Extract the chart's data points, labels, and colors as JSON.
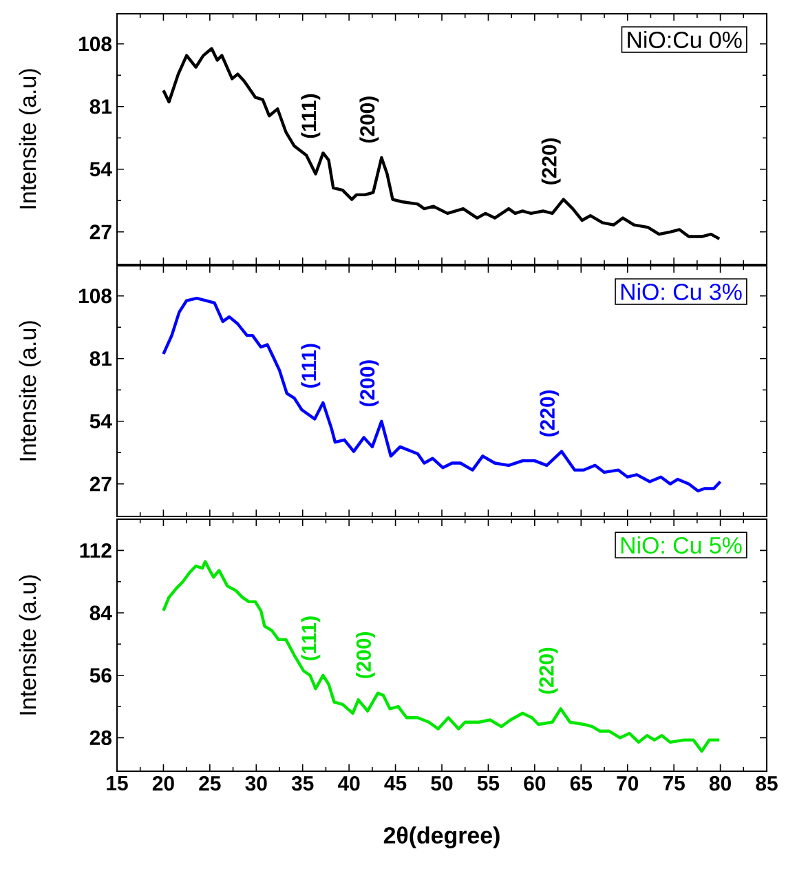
{
  "chart_data": [
    {
      "type": "line",
      "ylabel": "Intensite (a.u)",
      "xlim": [
        15,
        85
      ],
      "xticks": [
        15,
        20,
        25,
        30,
        35,
        40,
        45,
        50,
        55,
        60,
        65,
        70,
        75,
        80,
        85
      ],
      "ylim": [
        13,
        121
      ],
      "yticks": [
        27,
        54,
        81,
        108
      ],
      "tick_labels": "y",
      "legend": "top right",
      "marker": "none",
      "series": [
        {
          "name": "NiO:Cu 0%",
          "color": "#000000",
          "x": [
            20,
            20.6,
            21.6,
            22.5,
            23.5,
            24.3,
            25.2,
            25.8,
            26.3,
            27.4,
            28.0,
            28.7,
            29.9,
            30.7,
            31.4,
            32.3,
            33.2,
            34.1,
            35.4,
            36.4,
            37.2,
            37.8,
            38.3,
            39.3,
            40.3,
            40.8,
            41.7,
            42.6,
            43.5,
            44.1,
            44.7,
            45.7,
            47.4,
            48.1,
            49.1,
            50.6,
            52.3,
            53.8,
            54.7,
            55.7,
            57.2,
            57.9,
            58.7,
            59.6,
            60.9,
            61.9,
            63.1,
            64.1,
            65.1,
            66.0,
            67.3,
            68.5,
            69.5,
            70.7,
            72.2,
            73.4,
            74.6,
            75.6,
            76.6,
            78.0,
            79.0,
            79.9
          ],
          "values": [
            88,
            83,
            95,
            103,
            98,
            103,
            106,
            101,
            103,
            93,
            95,
            92,
            85,
            84,
            77,
            80,
            70,
            64,
            60,
            52,
            61,
            58,
            46,
            45,
            41,
            43,
            43,
            44,
            59,
            52,
            41,
            40,
            39,
            37,
            38,
            35,
            37,
            33,
            35,
            33,
            37,
            35,
            36,
            35,
            36,
            35,
            41,
            37,
            32,
            34,
            31,
            30,
            33,
            30,
            29,
            26,
            27,
            28,
            25,
            25,
            26,
            24
          ]
        }
      ],
      "annotations": [
        {
          "text": "(111)",
          "x": 37.2,
          "y": 61
        },
        {
          "text": "(200)",
          "x": 43.5,
          "y": 59
        },
        {
          "text": "(220)",
          "x": 63.1,
          "y": 41
        }
      ]
    },
    {
      "type": "line",
      "ylabel": "Intensite (a.u)",
      "xlim": [
        15,
        85
      ],
      "xticks": [
        15,
        20,
        25,
        30,
        35,
        40,
        45,
        50,
        55,
        60,
        65,
        70,
        75,
        80,
        85
      ],
      "ylim": [
        13,
        121
      ],
      "yticks": [
        27,
        54,
        81,
        108
      ],
      "tick_labels": "y",
      "legend": "top right",
      "marker": "none",
      "series": [
        {
          "name": "NiO: Cu 3%",
          "color": "#0000ff",
          "x": [
            20,
            20.9,
            21.7,
            22.5,
            23.6,
            24.6,
            25.5,
            26.4,
            27.1,
            28.0,
            29.0,
            29.6,
            30.5,
            31.2,
            31.8,
            32.5,
            33.3,
            34.1,
            34.9,
            36.3,
            37.2,
            38.1,
            38.5,
            39.5,
            40.5,
            41.6,
            42.5,
            43.5,
            44.5,
            45.5,
            47.4,
            48.1,
            49.0,
            50.1,
            51.1,
            52.0,
            53.3,
            54.4,
            55.7,
            57.2,
            58.7,
            60.0,
            61.3,
            62.9,
            64.3,
            65.3,
            66.5,
            67.5,
            69.0,
            70.0,
            71.0,
            72.4,
            73.6,
            74.6,
            75.4,
            76.6,
            77.6,
            78.3,
            79.3,
            80.0
          ],
          "values": [
            83,
            91,
            101,
            106,
            107,
            106,
            105,
            97,
            99,
            96,
            91,
            91,
            86,
            87,
            82,
            76,
            66,
            64,
            59,
            55,
            62,
            51,
            45,
            46,
            41,
            47,
            43,
            54,
            39,
            43,
            40,
            36,
            38,
            34,
            36,
            36,
            33,
            39,
            36,
            35,
            37,
            37,
            35,
            41,
            33,
            33,
            35,
            32,
            33,
            30,
            31,
            28,
            30,
            27,
            29,
            27,
            24,
            25,
            25,
            28
          ]
        }
      ],
      "annotations": [
        {
          "text": "(111)",
          "x": 37.2,
          "y": 62
        },
        {
          "text": "(200)",
          "x": 43.5,
          "y": 54
        },
        {
          "text": "(220)",
          "x": 62.9,
          "y": 41
        }
      ]
    },
    {
      "type": "line",
      "ylabel": "Intensite (a.u)",
      "xlabel": "2θ(degree)",
      "xlim": [
        15,
        85
      ],
      "xticks": [
        15,
        20,
        25,
        30,
        35,
        40,
        45,
        50,
        55,
        60,
        65,
        70,
        75,
        80,
        85
      ],
      "ylim": [
        13,
        126
      ],
      "yticks": [
        28,
        56,
        84,
        112
      ],
      "legend": "top right",
      "marker": "none",
      "series": [
        {
          "name": "NiO: Cu 5%",
          "color": "#00e600",
          "x": [
            20,
            20.6,
            21.4,
            22.1,
            22.8,
            23.5,
            24.2,
            24.5,
            25.0,
            25.4,
            26.0,
            26.9,
            27.8,
            28.5,
            29.2,
            29.9,
            30.5,
            30.9,
            31.7,
            32.4,
            33.2,
            34.1,
            35.1,
            35.8,
            36.4,
            37.2,
            37.8,
            38.4,
            39.3,
            40.4,
            41.0,
            42.0,
            43.1,
            43.7,
            44.4,
            45.3,
            46.2,
            47.4,
            48.6,
            49.6,
            50.7,
            51.8,
            52.5,
            54.0,
            55.2,
            56.4,
            57.4,
            58.7,
            59.7,
            60.4,
            61.9,
            62.8,
            63.8,
            65.3,
            66.2,
            67.0,
            68.0,
            69.2,
            70.2,
            71.2,
            72.1,
            72.9,
            73.7,
            74.6,
            76.1,
            77.1,
            78.0,
            78.8,
            79.9
          ],
          "values": [
            85,
            91,
            95,
            98,
            102,
            105,
            104,
            107,
            103,
            100,
            103,
            96,
            94,
            91,
            89,
            89,
            85,
            78,
            76,
            72,
            72,
            65,
            58,
            56,
            50,
            56,
            52,
            44,
            43,
            39,
            45,
            40,
            48,
            47,
            41,
            42,
            37,
            37,
            35,
            32,
            37,
            32,
            35,
            35,
            36,
            33,
            36,
            39,
            37,
            34,
            35,
            41,
            35,
            34,
            33,
            31,
            31,
            28,
            30,
            26,
            29,
            27,
            29,
            26,
            27,
            27,
            22,
            27,
            27
          ]
        }
      ],
      "annotations": [
        {
          "text": "(111)",
          "x": 37.2,
          "y": 56
        },
        {
          "text": "(200)",
          "x": 43.1,
          "y": 48
        },
        {
          "text": "(220)",
          "x": 62.8,
          "y": 41
        }
      ]
    }
  ]
}
